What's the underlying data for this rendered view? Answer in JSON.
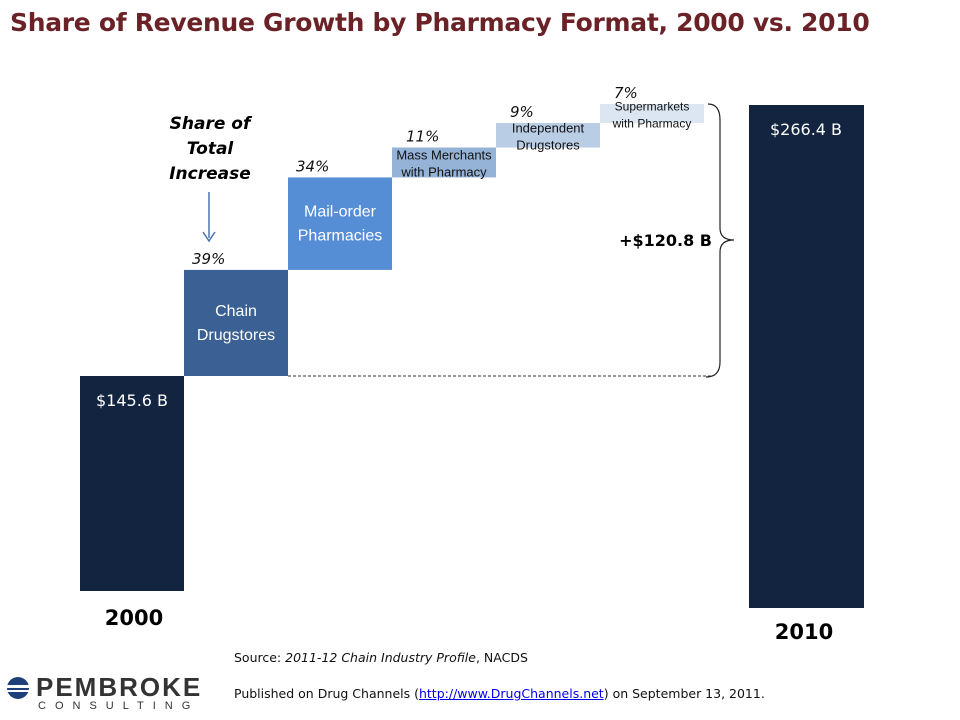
{
  "title": "Share of Revenue Growth by Pharmacy Format, 2000 vs. 2010",
  "chart_data": {
    "type": "waterfall",
    "title": "Share of Revenue Growth by Pharmacy Format, 2000 vs. 2010",
    "start": {
      "category": "2000",
      "value": 145.6,
      "label": "$145.6 B",
      "color": "#12243f"
    },
    "end": {
      "category": "2010",
      "value": 266.4,
      "label": "$266.4 B",
      "color": "#12243f"
    },
    "increase_label": "+$120.8 B",
    "share_header": "Share of Total Increase",
    "share_header_lines": [
      "Share of",
      "Total",
      "Increase"
    ],
    "steps": [
      {
        "name": "Chain Drugstores",
        "lines": [
          "Chain",
          "Drugstores"
        ],
        "share": 39,
        "share_label": "39%",
        "color": "#3a6094",
        "text": "#fff"
      },
      {
        "name": "Mail-order Pharmacies",
        "lines": [
          "Mail-order",
          "Pharmacies"
        ],
        "share": 34,
        "share_label": "34%",
        "color": "#558ed5",
        "text": "#fff"
      },
      {
        "name": "Mass Merchants with Pharmacy",
        "lines": [
          "Mass Merchants",
          "with Pharmacy"
        ],
        "share": 11,
        "share_label": "11%",
        "color": "#95b3d7",
        "text": "#111"
      },
      {
        "name": "Independent Drugstores",
        "lines": [
          "Independent",
          "Drugstores"
        ],
        "share": 9,
        "share_label": "9%",
        "color": "#b9cde5",
        "text": "#111"
      },
      {
        "name": "Supermarkets with Pharmacy",
        "lines": [
          "Supermarkets",
          "with Pharmacy"
        ],
        "share": 7,
        "share_label": "7%",
        "color": "#dce6f2",
        "text": "#111"
      }
    ]
  },
  "source": {
    "prefix": "Source: ",
    "title": "2011-12 Chain Industry Profile",
    "suffix": ", NACDS"
  },
  "published": {
    "prefix": "Published on Drug Channels (",
    "link": "http://www.DrugChannels.net",
    "suffix": ")  on September 13, 2011."
  },
  "logo": {
    "name": "PEMBROKE",
    "sub": "CONSULTING"
  }
}
